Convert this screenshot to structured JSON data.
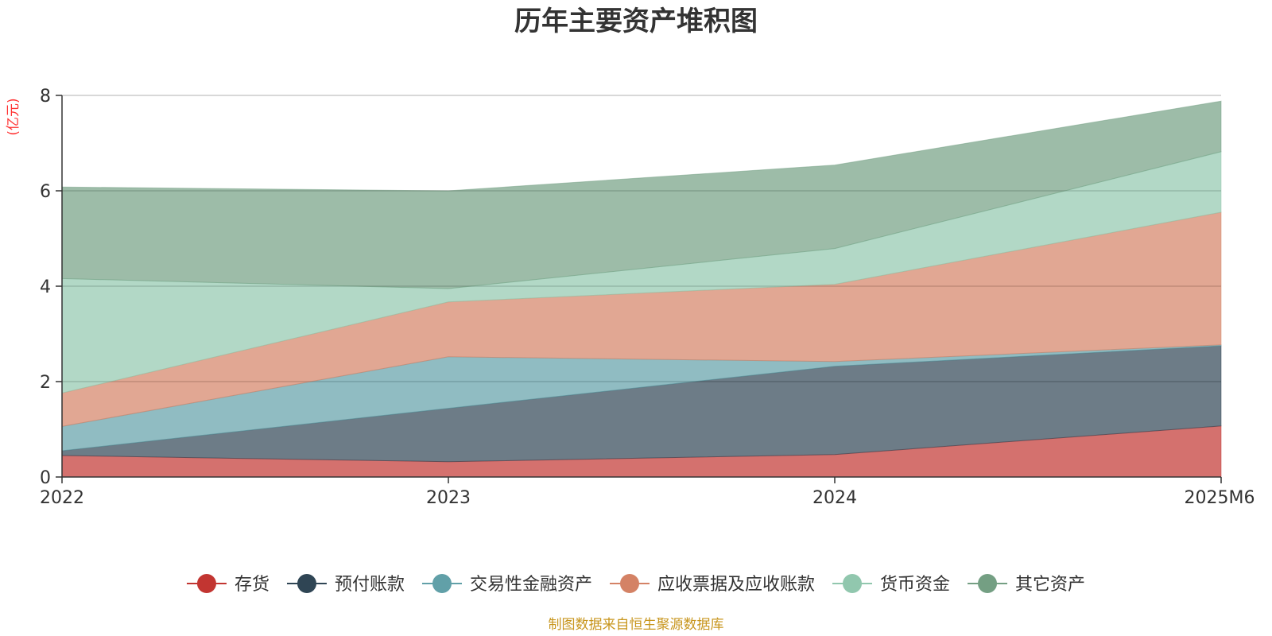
{
  "chart_data": {
    "type": "area",
    "stacked": true,
    "title": "历年主要资产堆积图",
    "ylabel": "(亿元)",
    "xlabel": "",
    "categories": [
      "2022",
      "2023",
      "2024",
      "2025M6"
    ],
    "ylim": [
      0,
      8
    ],
    "yticks": [
      "0",
      "2",
      "4",
      "6",
      "8"
    ],
    "legend_position": "bottom",
    "series": [
      {
        "name": "存货",
        "color": "#c23531",
        "values": [
          0.45,
          0.32,
          0.47,
          1.07
        ]
      },
      {
        "name": "预付账款",
        "color": "#2f4554",
        "values": [
          0.1,
          1.12,
          1.85,
          1.68
        ]
      },
      {
        "name": "交易性金融资产",
        "color": "#61a0a8",
        "values": [
          0.51,
          1.08,
          0.1,
          0.02
        ]
      },
      {
        "name": "应收票据及应收账款",
        "color": "#d48265",
        "values": [
          0.7,
          1.15,
          1.62,
          2.78
        ]
      },
      {
        "name": "货币资金",
        "color": "#91c7ae",
        "values": [
          2.4,
          0.28,
          0.75,
          1.27
        ]
      },
      {
        "name": "其它资产",
        "color": "#749f83",
        "values": [
          1.92,
          2.05,
          1.75,
          1.06
        ]
      }
    ],
    "source": "制图数据来自恒生聚源数据库"
  }
}
